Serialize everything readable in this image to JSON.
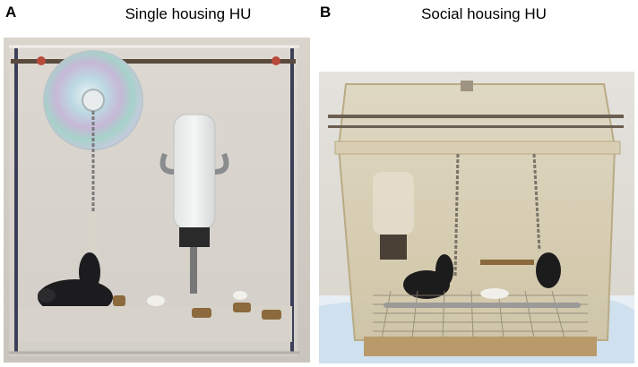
{
  "panels": [
    {
      "letter": "A",
      "title": "Single housing HU"
    },
    {
      "letter": "B",
      "title": "Social housing HU"
    }
  ]
}
